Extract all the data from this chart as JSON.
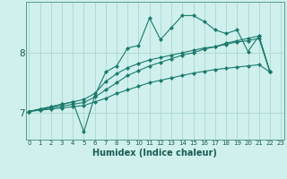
{
  "title": "",
  "xlabel": "Humidex (Indice chaleur)",
  "bg_color": "#cff0ec",
  "line_color": "#1a7a6e",
  "grid_color": "#aad8d2",
  "x_ticks": [
    0,
    1,
    2,
    3,
    4,
    5,
    6,
    7,
    8,
    9,
    10,
    11,
    12,
    13,
    14,
    15,
    16,
    17,
    18,
    19,
    20,
    21,
    22,
    23
  ],
  "y_ticks": [
    7,
    8
  ],
  "xlim": [
    -0.3,
    23.3
  ],
  "ylim": [
    6.55,
    8.85
  ],
  "series1_x": [
    0,
    1,
    2,
    3,
    4,
    5,
    6,
    7,
    8,
    9,
    10,
    11,
    12,
    13,
    14,
    15,
    16,
    17,
    18,
    19,
    20,
    21,
    22
  ],
  "series1_y": [
    7.02,
    7.06,
    7.1,
    7.14,
    7.18,
    6.68,
    7.28,
    7.68,
    7.78,
    8.08,
    8.12,
    8.58,
    8.22,
    8.42,
    8.62,
    8.62,
    8.52,
    8.38,
    8.32,
    8.38,
    8.02,
    8.28,
    7.68
  ],
  "series2_x": [
    0,
    1,
    2,
    3,
    4,
    5,
    6,
    7,
    8,
    9,
    10,
    11,
    12,
    13,
    14,
    15,
    16,
    17,
    18,
    19,
    20,
    21,
    22
  ],
  "series2_y": [
    7.02,
    7.06,
    7.1,
    7.14,
    7.18,
    7.22,
    7.32,
    7.52,
    7.65,
    7.75,
    7.82,
    7.88,
    7.92,
    7.96,
    8.0,
    8.04,
    8.08,
    8.1,
    8.14,
    8.18,
    8.2,
    8.24,
    7.68
  ],
  "series3_x": [
    0,
    1,
    2,
    3,
    4,
    5,
    6,
    7,
    8,
    9,
    10,
    11,
    12,
    13,
    14,
    15,
    16,
    17,
    18,
    19,
    20,
    21,
    22
  ],
  "series3_y": [
    7.02,
    7.04,
    7.06,
    7.08,
    7.1,
    7.12,
    7.18,
    7.24,
    7.32,
    7.38,
    7.44,
    7.5,
    7.54,
    7.58,
    7.62,
    7.66,
    7.69,
    7.72,
    7.74,
    7.76,
    7.78,
    7.8,
    7.68
  ],
  "series4_x": [
    0,
    1,
    2,
    3,
    4,
    5,
    6,
    7,
    8,
    9,
    10,
    11,
    12,
    13,
    14,
    15,
    16,
    17,
    18,
    19,
    20,
    21,
    22
  ],
  "series4_y": [
    7.02,
    7.05,
    7.08,
    7.11,
    7.14,
    7.17,
    7.26,
    7.38,
    7.5,
    7.62,
    7.7,
    7.78,
    7.84,
    7.9,
    7.96,
    8.0,
    8.06,
    8.1,
    8.16,
    8.2,
    8.24,
    8.28,
    7.68
  ]
}
